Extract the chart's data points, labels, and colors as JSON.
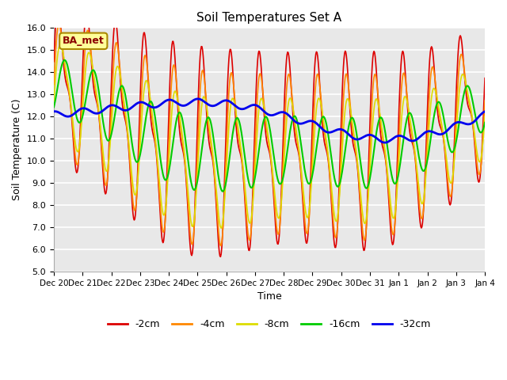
{
  "title": "Soil Temperatures Set A",
  "xlabel": "Time",
  "ylabel": "Soil Temperature (C)",
  "ylim": [
    5.0,
    16.0
  ],
  "yticks": [
    5.0,
    6.0,
    7.0,
    8.0,
    9.0,
    10.0,
    11.0,
    12.0,
    13.0,
    14.0,
    15.0,
    16.0
  ],
  "x_labels": [
    "Dec 20",
    "Dec 21",
    "Dec 22",
    "Dec 23",
    "Dec 24",
    "Dec 25",
    "Dec 26",
    "Dec 27",
    "Dec 28",
    "Dec 29",
    "Dec 30",
    "Dec 31",
    "Jan 1",
    "Jan 2",
    "Jan 3",
    "Jan 4"
  ],
  "annotation_text": "BA_met",
  "colors": {
    "-2cm": "#dd0000",
    "-4cm": "#ff8800",
    "-8cm": "#dddd00",
    "-16cm": "#00cc00",
    "-32cm": "#0000ee"
  },
  "line_widths": {
    "-2cm": 1.2,
    "-4cm": 1.2,
    "-8cm": 1.2,
    "-16cm": 1.5,
    "-32cm": 2.0
  },
  "plot_bg_color": "#e8e8e8"
}
